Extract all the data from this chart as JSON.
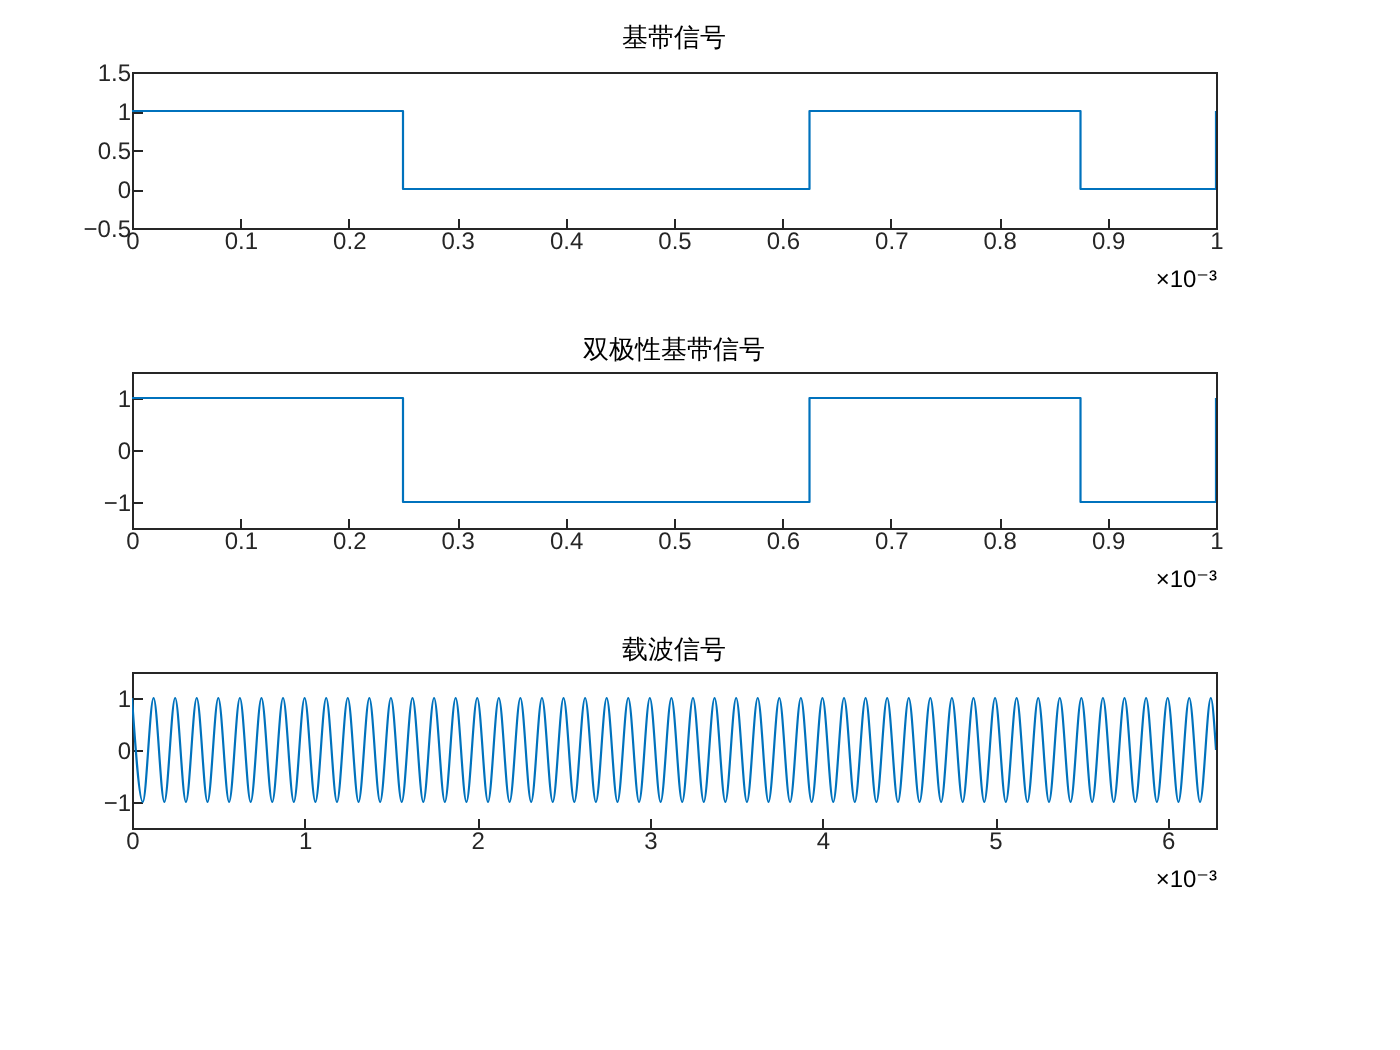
{
  "chart_data": [
    {
      "type": "step",
      "title": "基带信号",
      "x": [
        0,
        0.25,
        0.625,
        0.875,
        1
      ],
      "series": [
        {
          "color": "#0072bd",
          "values": [
            1,
            0,
            1,
            0,
            1
          ]
        }
      ],
      "xlim": [
        0,
        1
      ],
      "xticks": [
        0,
        0.1,
        0.2,
        0.3,
        0.4,
        0.5,
        0.6,
        0.7,
        0.8,
        0.9,
        1
      ],
      "ylim": [
        -0.5,
        1.5
      ],
      "yticks": [
        -0.5,
        0,
        0.5,
        1,
        1.5
      ],
      "annotations": [
        "×10⁻³"
      ]
    },
    {
      "type": "step",
      "title": "双极性基带信号",
      "x": [
        0,
        0.25,
        0.625,
        0.875,
        1
      ],
      "series": [
        {
          "color": "#0072bd",
          "values": [
            1,
            -1,
            1,
            -1,
            1
          ]
        }
      ],
      "xlim": [
        0,
        1
      ],
      "xticks": [
        0,
        0.1,
        0.2,
        0.3,
        0.4,
        0.5,
        0.6,
        0.7,
        0.8,
        0.9,
        1
      ],
      "ylim": [
        -1.5,
        1.5
      ],
      "yticks": [
        -1,
        0,
        1
      ],
      "annotations": [
        "×10⁻³"
      ]
    },
    {
      "type": "line",
      "title": "载波信号",
      "x": [
        0,
        0.0625,
        0.125,
        0.1875,
        0.25,
        0.3125,
        0.375,
        0.4375,
        0.5,
        0.5625,
        0.625,
        0.6875,
        0.75,
        0.8125,
        0.875,
        0.9375,
        1,
        1.0625,
        1.125,
        1.1875,
        1.25,
        1.3125,
        1.375,
        1.4375,
        1.5,
        1.5625,
        1.625,
        1.6875,
        1.75,
        1.8125,
        1.875,
        1.9375,
        2,
        2.0625,
        2.125,
        2.1875,
        2.25,
        2.3125,
        2.375,
        2.4375,
        2.5,
        2.5625,
        2.625,
        2.6875,
        2.75,
        2.8125,
        2.875,
        2.9375,
        3,
        3.0625,
        3.125,
        3.1875,
        3.25,
        3.3125,
        3.375,
        3.4375,
        3.5,
        3.5625,
        3.625,
        3.6875,
        3.75,
        3.8125,
        3.875,
        3.9375,
        4,
        4.0625,
        4.125,
        4.1875,
        4.25,
        4.3125,
        4.375,
        4.4375,
        4.5,
        4.5625,
        4.625,
        4.6875,
        4.75,
        4.8125,
        4.875,
        4.9375,
        5,
        5.0625,
        5.125,
        5.1875,
        5.25,
        5.3125,
        5.375,
        5.4375,
        5.5,
        5.5625,
        5.625,
        5.6875,
        5.75,
        5.8125,
        5.875,
        5.9375,
        6,
        6.0625,
        6.125,
        6.1875,
        6.25,
        6.28
      ],
      "series": [
        {
          "color": "#0072bd",
          "values": [
            1,
            -1,
            1,
            -1,
            1,
            -1,
            1,
            -1,
            1,
            -1,
            1,
            -1,
            1,
            -1,
            1,
            -1,
            1,
            -1,
            1,
            -1,
            1,
            -1,
            1,
            -1,
            1,
            -1,
            1,
            -1,
            1,
            -1,
            1,
            -1,
            1,
            -1,
            1,
            -1,
            1,
            -1,
            1,
            -1,
            1,
            -1,
            1,
            -1,
            1,
            -1,
            1,
            -1,
            1,
            -1,
            1,
            -1,
            1,
            -1,
            1,
            -1,
            1,
            -1,
            1,
            -1,
            1,
            -1,
            1,
            -1,
            1,
            -1,
            1,
            -1,
            1,
            -1,
            1,
            -1,
            1,
            -1,
            1,
            -1,
            1,
            -1,
            1,
            -1,
            1,
            -1,
            1,
            -1,
            1,
            -1,
            1,
            -1,
            1,
            -1,
            1,
            -1,
            1,
            -1,
            1,
            -1,
            1,
            -1,
            1,
            -1,
            1,
            0
          ]
        }
      ],
      "xlim": [
        0,
        6.28
      ],
      "xticks": [
        0,
        1,
        2,
        3,
        4,
        5,
        6
      ],
      "ylim": [
        -1.5,
        1.5
      ],
      "yticks": [
        -1,
        0,
        1
      ],
      "annotations": [
        "×10⁻³"
      ]
    }
  ]
}
